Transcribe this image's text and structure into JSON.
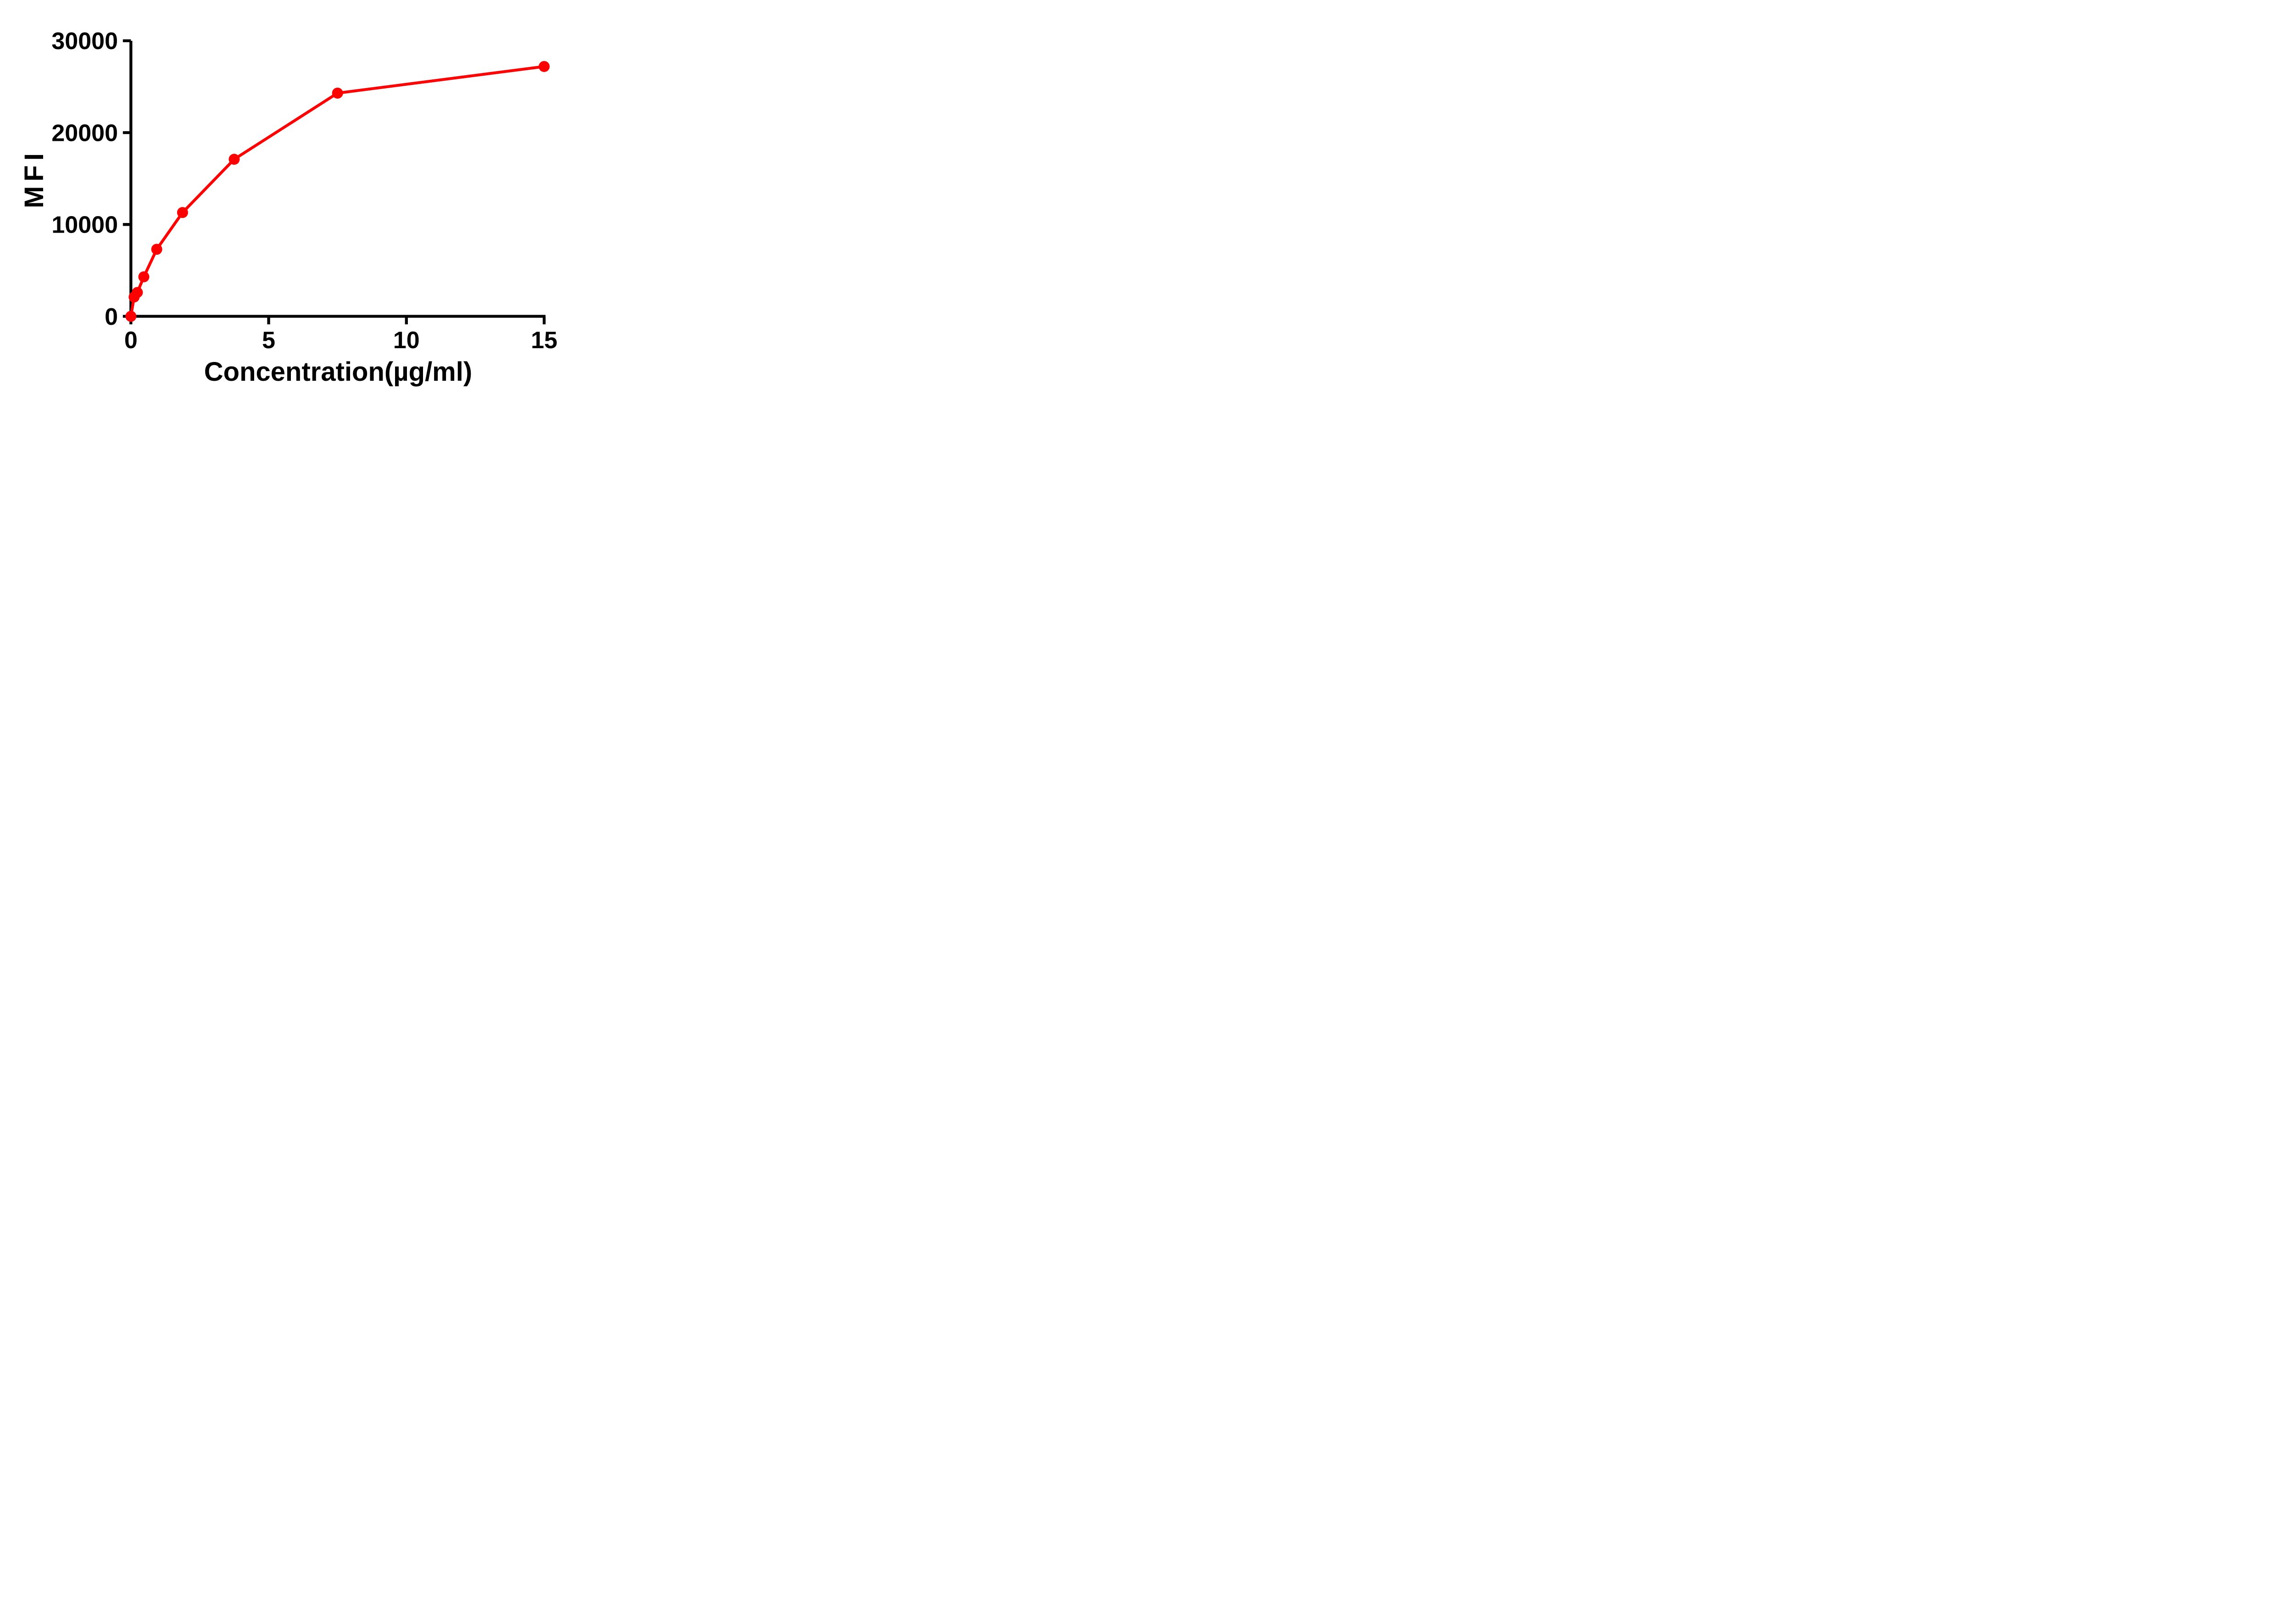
{
  "chart_data": {
    "type": "line",
    "title": "",
    "xlabel": "Concentration(µg/ml)",
    "ylabel": "MFI",
    "x_ticks": [
      0,
      5,
      10,
      15
    ],
    "y_ticks": [
      0,
      10000,
      20000,
      30000
    ],
    "xlim": [
      0,
      15.1
    ],
    "ylim": [
      0,
      30000
    ],
    "grid": false,
    "legend_position": "none",
    "series": [
      {
        "name": "MFI",
        "color": "#FF0000",
        "marker": "circle",
        "x": [
          0,
          0.117,
          0.234,
          0.469,
          0.938,
          1.875,
          3.75,
          7.5,
          15
        ],
        "y": [
          0,
          2100,
          2600,
          4300,
          7300,
          11300,
          17100,
          24300,
          27200
        ]
      }
    ]
  },
  "colors": {
    "axis": "#000000",
    "background": "#FFFFFF",
    "series_red": "#FF0000"
  }
}
